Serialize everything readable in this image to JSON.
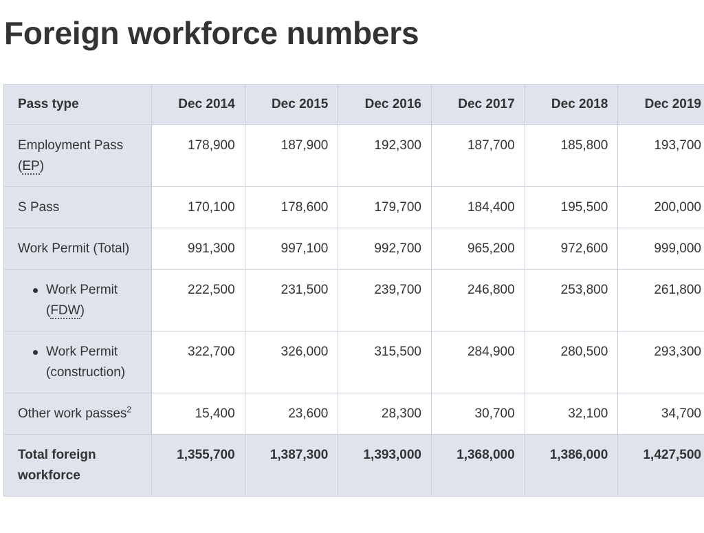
{
  "title": "Foreign workforce numbers",
  "table": {
    "headers": [
      "Pass type",
      "Dec 2014",
      "Dec 2015",
      "Dec 2016",
      "Dec 2017",
      "Dec 2018",
      "Dec 2019"
    ],
    "rows": [
      {
        "label_pre": "Employment Pass (",
        "label_abbr": "EP",
        "label_post": ")",
        "values": [
          "178,900",
          "187,900",
          "192,300",
          "187,700",
          "185,800",
          "193,700"
        ]
      },
      {
        "label": "S Pass",
        "values": [
          "170,100",
          "178,600",
          "179,700",
          "184,400",
          "195,500",
          "200,000"
        ]
      },
      {
        "label": "Work Permit (Total)",
        "values": [
          "991,300",
          "997,100",
          "992,700",
          "965,200",
          "972,600",
          "999,000"
        ]
      },
      {
        "label_pre": "Work Permit (",
        "label_abbr": "FDW",
        "label_post": ")",
        "values": [
          "222,500",
          "231,500",
          "239,700",
          "246,800",
          "253,800",
          "261,800"
        ]
      },
      {
        "label": "Work Permit (construction)",
        "values": [
          "322,700",
          "326,000",
          "315,500",
          "284,900",
          "280,500",
          "293,300"
        ]
      },
      {
        "label": "Other work passes",
        "label_sup": "2",
        "values": [
          "15,400",
          "23,600",
          "28,300",
          "30,700",
          "32,100",
          "34,700"
        ]
      },
      {
        "label": "Total foreign workforce",
        "values": [
          "1,355,700",
          "1,387,300",
          "1,393,000",
          "1,368,000",
          "1,386,000",
          "1,427,500"
        ]
      }
    ]
  }
}
